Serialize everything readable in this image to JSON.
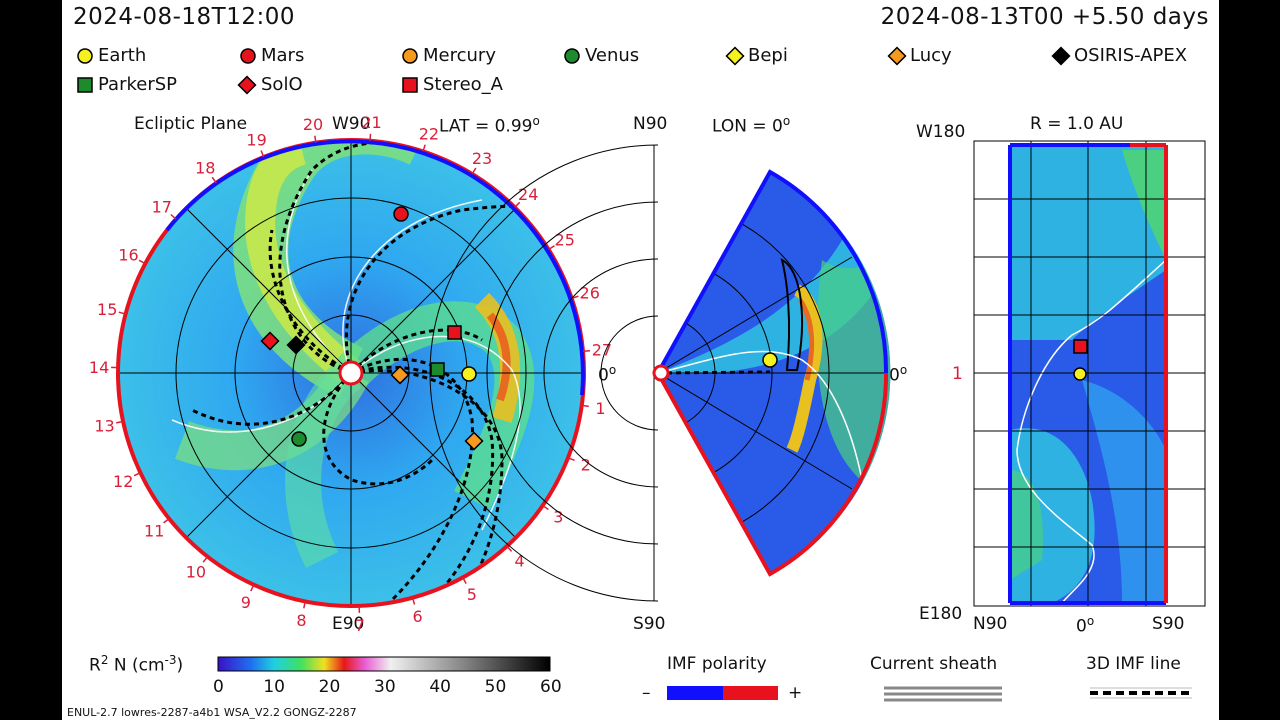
{
  "header": {
    "left_time": "2024-08-18T12:00",
    "right_time": "2024-08-13T00 +5.50 days"
  },
  "legend": [
    {
      "label": "Earth",
      "shape": "circle",
      "color": "#f5f01e"
    },
    {
      "label": "Mars",
      "shape": "circle",
      "color": "#e8121e"
    },
    {
      "label": "Mercury",
      "shape": "circle",
      "color": "#f59a1e"
    },
    {
      "label": "Venus",
      "shape": "circle",
      "color": "#1e8a2e"
    },
    {
      "label": "Bepi",
      "shape": "diamond",
      "color": "#f5f01e"
    },
    {
      "label": "Lucy",
      "shape": "diamond",
      "color": "#f59a1e"
    },
    {
      "label": "OSIRIS-APEX",
      "shape": "diamond",
      "color": "#000000"
    },
    {
      "label": "ParkerSP",
      "shape": "square",
      "color": "#1e8a2e"
    },
    {
      "label": "SolO",
      "shape": "diamond",
      "color": "#e8121e"
    },
    {
      "label": "Stereo_A",
      "shape": "square",
      "color": "#e8121e"
    }
  ],
  "ecliptic": {
    "title": "Ecliptic Plane",
    "top_label": "W90",
    "bottom_label": "E90",
    "lat": "LAT = 0.99",
    "deg": "o",
    "zero": "0",
    "carrington": [
      "1",
      "2",
      "3",
      "4",
      "5",
      "6",
      "7",
      "8",
      "9",
      "10",
      "11",
      "12",
      "13",
      "14",
      "15",
      "16",
      "17",
      "18",
      "19",
      "20",
      "21",
      "22",
      "23",
      "24",
      "25",
      "26",
      "27"
    ]
  },
  "meridional": {
    "top_label": "N90",
    "bottom_label": "S90",
    "lon": "LON = 0",
    "deg": "o",
    "zero": "0"
  },
  "radial": {
    "title": "R = 1.0 AU",
    "top_left": "W180",
    "bottom_left": "E180",
    "mid_left": "1",
    "x_left": "N90",
    "x_mid": "0",
    "x_right": "S90",
    "deg": "o"
  },
  "colorbar": {
    "label_main": "R",
    "label_sup": "2",
    "label_rest": " N (cm",
    "label_exp": "-3",
    "label_end": ")",
    "ticks": [
      "0",
      "10",
      "20",
      "30",
      "40",
      "50",
      "60"
    ]
  },
  "imf": {
    "label": "IMF polarity",
    "minus": "–",
    "plus": "+",
    "neg_color": "#1010ff",
    "pos_color": "#e8121e"
  },
  "sheath": {
    "label": "Current sheath"
  },
  "imfline": {
    "label": "3D IMF line"
  },
  "footer": {
    "text": "ENUL-2.7 lowres-2287-a4b1 WSA_V2.2 GONGZ-2287"
  }
}
